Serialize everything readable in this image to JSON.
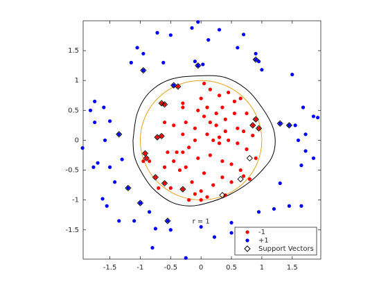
{
  "chart_data": {
    "type": "scatter",
    "xlim": [
      -1.94,
      1.97
    ],
    "ylim": [
      -1.99,
      2.0
    ],
    "xticks": [
      -1.5,
      -1,
      -0.5,
      0,
      0.5,
      1,
      1.5
    ],
    "yticks": [
      -1.5,
      -1,
      -0.5,
      0,
      0.5,
      1,
      1.5
    ],
    "grid": false,
    "legend": "southeast",
    "annotation": "r = 1",
    "circle": {
      "radius": 1,
      "color": "#e3a21a"
    },
    "boundary": {
      "color": "#000000",
      "x": [
        -1.12,
        -1.05,
        -0.85,
        -0.5,
        0,
        0.4,
        0.75,
        1.0,
        1.17,
        1.22,
        1.18,
        1.05,
        0.8,
        0.45,
        0.1,
        -0.2,
        -0.5,
        -0.8,
        -1.0,
        -1.1,
        -1.12
      ],
      "y": [
        0,
        0.45,
        0.8,
        1.02,
        1.08,
        1.05,
        0.85,
        0.55,
        0.25,
        0,
        -0.25,
        -0.45,
        -0.7,
        -0.92,
        -1.05,
        -1.1,
        -1.03,
        -0.8,
        -0.5,
        -0.25,
        0
      ]
    },
    "series": [
      {
        "name": "-1",
        "color": "#ff0000",
        "x": [
          -0.38,
          -0.6,
          -0.65,
          -0.3,
          0.05,
          0.15,
          0.3,
          0.45,
          0.55,
          0.65,
          0.75,
          0.9,
          0.95,
          -0.25,
          -0.05,
          0.1,
          0.25,
          0.4,
          0.35,
          0.6,
          0.7,
          -0.72,
          -0.65,
          -0.55,
          -0.4,
          -0.3,
          -0.2,
          -0.1,
          0.1,
          0.2,
          0.3,
          0.45,
          0.6,
          0.75,
          0.85,
          -0.9,
          -0.85,
          -0.6,
          -0.45,
          -0.35,
          -0.25,
          -0.05,
          0.05,
          0.15,
          0.35,
          0.5,
          0.7,
          0.8,
          -0.92,
          -0.75,
          -0.6,
          -0.5,
          -0.3,
          -0.15,
          0.0,
          0.2,
          0.35,
          0.5,
          0.65,
          -0.6,
          -0.45,
          -0.3,
          -0.1,
          0.05,
          0.25,
          0.4,
          0.55,
          -0.3,
          0.0,
          0.15,
          0.3,
          -0.1,
          0.1,
          0.9,
          -0.95,
          0.85,
          -0.7,
          -0.2,
          0.0,
          0.4
        ],
        "y": [
          0.9,
          0.6,
          0.62,
          0.55,
          0.95,
          0.85,
          0.75,
          0.8,
          0.65,
          0.7,
          0.45,
          0.35,
          0.2,
          0.3,
          0.5,
          0.55,
          0.45,
          0.35,
          0.55,
          0.2,
          0.15,
          0.05,
          0.07,
          -0.2,
          -0.2,
          -0.2,
          -0.12,
          0.0,
          0.1,
          0.0,
          0.05,
          0.0,
          -0.05,
          -0.15,
          0.08,
          -0.3,
          -0.35,
          -0.45,
          -0.35,
          -0.5,
          -0.45,
          -0.3,
          -0.55,
          -0.25,
          -0.35,
          -0.4,
          -0.6,
          -0.65,
          -0.22,
          -0.62,
          -0.72,
          -0.8,
          -0.82,
          -0.7,
          -0.85,
          -0.75,
          -0.62,
          -0.7,
          -0.5,
          0.3,
          0.25,
          0.1,
          0.2,
          0.4,
          0.25,
          0.15,
          0.45,
          0.62,
          0.7,
          0.3,
          -0.05,
          -0.9,
          -0.95,
          -0.3,
          -0.35,
          0.25,
          -0.8,
          -1.0,
          -1.0,
          -0.92
        ]
      },
      {
        "name": "+1",
        "color": "#0000ff",
        "x": [
          -0.05,
          -0.15,
          0.3,
          -0.72,
          -0.5,
          0.7,
          0.12,
          -1.05,
          -0.95,
          0.6,
          0.9,
          0.95,
          1.0,
          1.5,
          -1.15,
          -0.95,
          -0.62,
          -0.1,
          0.03,
          -1.75,
          -1.82,
          -1.6,
          -1.75,
          -1.5,
          -1.35,
          -1.58,
          -1.95,
          -1.3,
          -1.5,
          -1.77,
          -1.7,
          -1.42,
          -1.2,
          -1.0,
          -0.85,
          -1.62,
          -1.55,
          -1.35,
          -1.1,
          -0.75,
          -0.5,
          -0.8,
          -0.25,
          0.0,
          0.22,
          0.5,
          0.82,
          0.72,
          0.5,
          0.95,
          1.2,
          1.45,
          1.65,
          1.3,
          1.65,
          1.72,
          1.68,
          1.6,
          1.72,
          1.85,
          1.92,
          1.3,
          1.45,
          1.55,
          1.85,
          -0.55,
          0.9,
          -0.45,
          -0.05
        ],
        "y": [
          1.98,
          1.88,
          1.85,
          1.8,
          1.76,
          1.77,
          1.68,
          1.55,
          1.45,
          1.55,
          1.45,
          1.32,
          1.18,
          1.1,
          1.3,
          1.17,
          1.3,
          1.32,
          1.27,
          0.65,
          0.5,
          0.55,
          0.3,
          0.32,
          0.1,
          0.0,
          -0.13,
          -0.32,
          -0.45,
          -0.45,
          -0.38,
          -0.7,
          -0.8,
          -1.05,
          -1.2,
          -0.98,
          -1.1,
          -1.35,
          -1.35,
          -1.48,
          -1.5,
          -1.8,
          -1.97,
          -1.45,
          -1.62,
          -1.55,
          -1.65,
          -1.75,
          -1.38,
          -1.2,
          -1.15,
          -1.1,
          -1.1,
          -0.72,
          -0.42,
          0.1,
          0.55,
          0.0,
          -0.18,
          0.4,
          0.38,
          0.28,
          0.25,
          0.25,
          -0.3,
          -1.35,
          1.35,
          0.92,
          1.25
        ]
      },
      {
        "name": "Support Vectors",
        "color": "#000000",
        "x": [
          -0.38,
          -0.6,
          -0.65,
          -0.72,
          -0.65,
          -0.92,
          -0.9,
          -0.75,
          -0.6,
          -0.3,
          0.35,
          0.65,
          0.8,
          0.9,
          0.95,
          0.85,
          -0.45,
          -0.05,
          -1.35,
          -1.2,
          -1.0,
          -0.55,
          1.3,
          1.45,
          0.9,
          -0.95
        ],
        "y": [
          0.9,
          0.6,
          0.62,
          0.05,
          0.07,
          -0.22,
          -0.3,
          -0.62,
          -0.72,
          -0.82,
          -0.92,
          -0.65,
          -0.3,
          0.35,
          0.2,
          0.25,
          0.92,
          1.25,
          0.1,
          -0.8,
          -1.05,
          -1.35,
          0.28,
          0.25,
          1.35,
          1.17
        ]
      }
    ]
  }
}
